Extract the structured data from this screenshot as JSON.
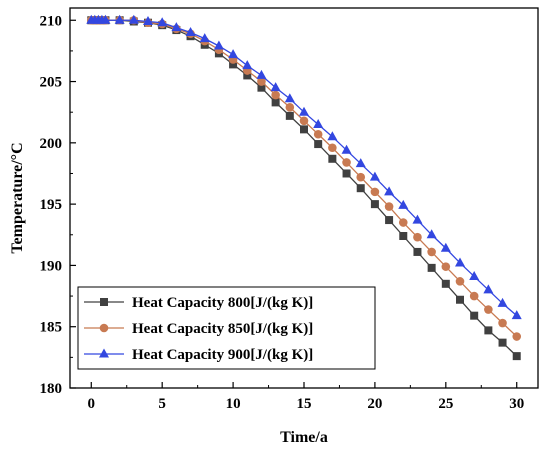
{
  "chart_data": {
    "type": "line",
    "xlabel": "Time/a",
    "ylabel": "Temperature/°C",
    "xlim": [
      -1.5,
      31.5
    ],
    "ylim": [
      180,
      211
    ],
    "xticks": [
      0,
      5,
      10,
      15,
      20,
      25,
      30
    ],
    "yticks": [
      180,
      185,
      190,
      195,
      200,
      205,
      210
    ],
    "x": [
      0,
      0.25,
      0.5,
      0.75,
      1,
      2,
      3,
      4,
      5,
      6,
      7,
      8,
      9,
      10,
      11,
      12,
      13,
      14,
      15,
      16,
      17,
      18,
      19,
      20,
      21,
      22,
      23,
      24,
      25,
      26,
      27,
      28,
      29,
      30
    ],
    "series": [
      {
        "name": "Heat Capacity 800[J/(kg K)]",
        "marker": "square",
        "color": "#404040",
        "values": [
          210,
          210,
          210,
          210,
          210,
          210,
          209.9,
          209.8,
          209.6,
          209.2,
          208.7,
          208.0,
          207.3,
          206.4,
          205.5,
          204.5,
          203.3,
          202.2,
          201.1,
          199.9,
          198.7,
          197.5,
          196.3,
          195.0,
          193.7,
          192.4,
          191.1,
          189.8,
          188.5,
          187.2,
          185.9,
          184.7,
          183.7,
          182.6
        ]
      },
      {
        "name": "Heat Capacity 850[J/(kg K)]",
        "marker": "circle",
        "color": "#c87a52",
        "values": [
          210,
          210,
          210,
          210,
          210,
          210,
          210,
          209.8,
          209.7,
          209.3,
          208.9,
          208.3,
          207.6,
          206.8,
          205.9,
          205.0,
          203.9,
          202.9,
          201.8,
          200.7,
          199.6,
          198.4,
          197.2,
          196.0,
          194.8,
          193.5,
          192.3,
          191.1,
          189.9,
          188.7,
          187.5,
          186.4,
          185.3,
          184.2
        ]
      },
      {
        "name": "Heat Capacity 900[J/(kg K)]",
        "marker": "triangle",
        "color": "#3347e0",
        "values": [
          210,
          210,
          210,
          210,
          210,
          210,
          210,
          209.9,
          209.8,
          209.4,
          209.0,
          208.5,
          207.9,
          207.2,
          206.3,
          205.5,
          204.5,
          203.6,
          202.5,
          201.5,
          200.5,
          199.4,
          198.3,
          197.2,
          196.0,
          194.9,
          193.7,
          192.5,
          191.4,
          190.2,
          189.1,
          188.0,
          186.9,
          185.9
        ]
      }
    ],
    "legend_position": "bottom-left",
    "grid": false
  }
}
